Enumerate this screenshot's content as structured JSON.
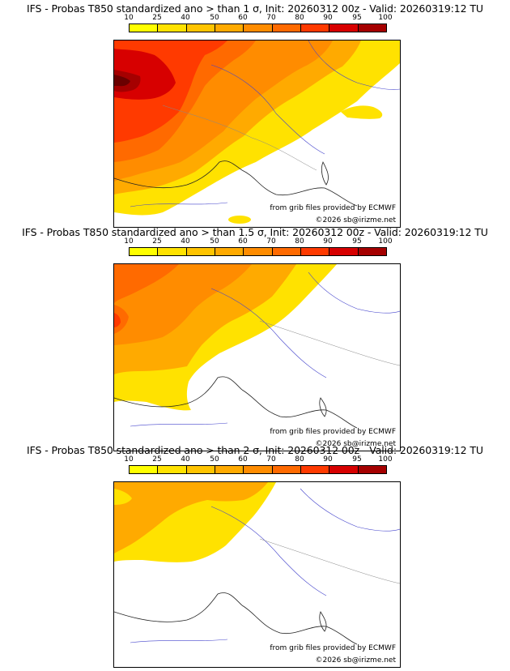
{
  "colorbar": {
    "ticks": [
      "10",
      "25",
      "40",
      "50",
      "60",
      "70",
      "80",
      "90",
      "95",
      "100"
    ],
    "colors": [
      "#ffff00",
      "#ffe200",
      "#ffc400",
      "#ffaa00",
      "#ff8c00",
      "#ff6a00",
      "#ff3a00",
      "#d70000",
      "#a50000",
      "#6a0000"
    ]
  },
  "panels": [
    {
      "title": "IFS - Probas T850  standardized ano > than 1 σ, Init: 20260312 00z - Valid: 20260319:12 TU",
      "threshold": "1 σ"
    },
    {
      "title": "IFS - Probas T850  standardized ano > than 1.5 σ, Init: 20260312 00z - Valid: 20260319:12 TU",
      "threshold": "1.5 σ"
    },
    {
      "title": "IFS - Probas T850  standardized ano > than 2 σ, Init: 20260312 00z - Valid: 20260319:12 TU",
      "threshold": "2 σ"
    }
  ],
  "credits": {
    "source": "from grib files provided by ECMWF",
    "copyright": "©2026 sb@irizme.net"
  }
}
